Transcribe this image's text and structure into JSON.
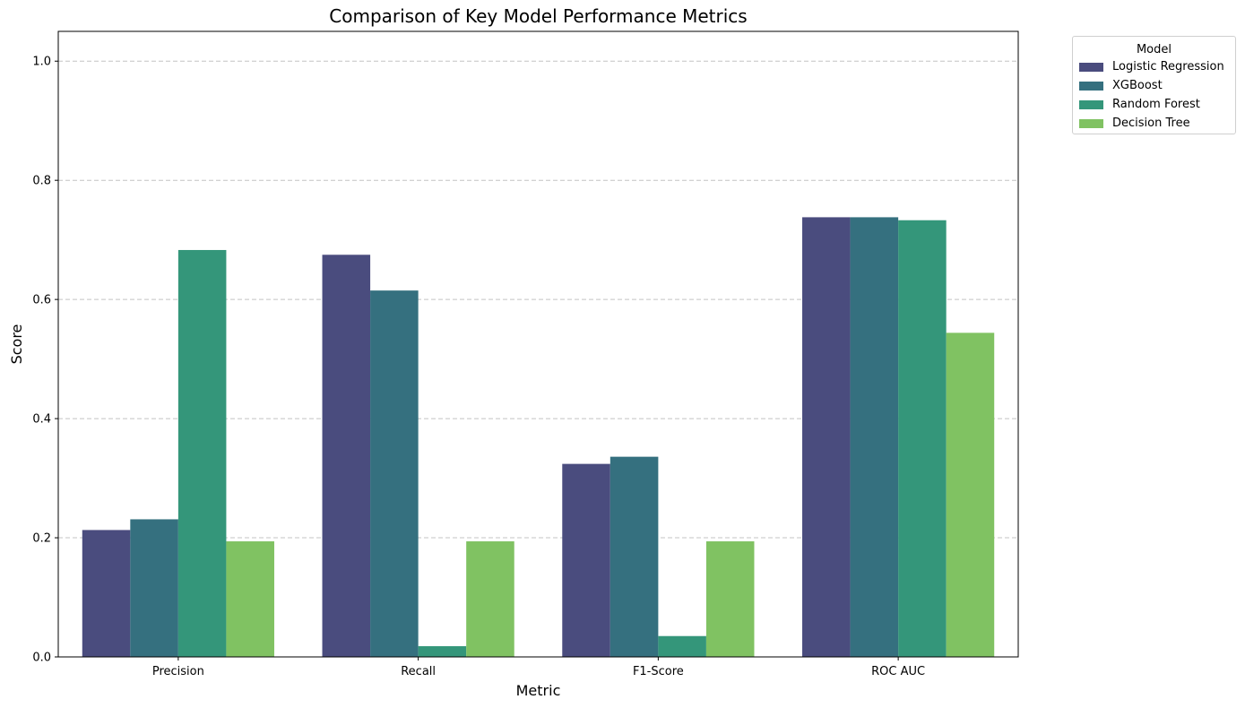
{
  "chart_data": {
    "type": "bar",
    "title": "Comparison of Key Model Performance Metrics",
    "xlabel": "Metric",
    "ylabel": "Score",
    "categories": [
      "Precision",
      "Recall",
      "F1-Score",
      "ROC AUC"
    ],
    "ylim": [
      0,
      1.05
    ],
    "yticks": [
      "0.0",
      "0.2",
      "0.4",
      "0.6",
      "0.8",
      "1.0"
    ],
    "grid": "y-dashed",
    "legend": {
      "title": "Model",
      "placement": "outside-top-right"
    },
    "series": [
      {
        "name": "Logistic Regression",
        "color": "#4a4c7e",
        "values": [
          0.213,
          0.675,
          0.324,
          0.738
        ]
      },
      {
        "name": "XGBoost",
        "color": "#35707f",
        "values": [
          0.231,
          0.615,
          0.336,
          0.738
        ]
      },
      {
        "name": "Random Forest",
        "color": "#34967a",
        "values": [
          0.683,
          0.018,
          0.035,
          0.733
        ]
      },
      {
        "name": "Decision Tree",
        "color": "#80c262",
        "values": [
          0.194,
          0.194,
          0.194,
          0.544
        ]
      }
    ]
  }
}
